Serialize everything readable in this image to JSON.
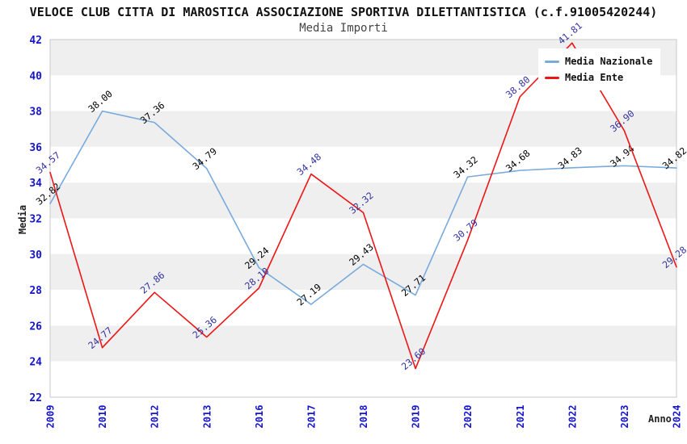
{
  "title": "VELOCE CLUB CITTA DI MAROSTICA ASSOCIAZIONE SPORTIVA DILETTANTISTICA (c.f.91005420244)",
  "subtitle": "Media Importi",
  "colors": {
    "axis_tick": "#1515cf",
    "band_fill": "#efefef",
    "plot_border": "#c9c9c9",
    "nazionale_line": "#78aadc",
    "ente_line": "#ee1515"
  },
  "chart_data": {
    "type": "line",
    "title": "Media Importi",
    "xlabel": "Anno",
    "ylabel": "Media",
    "ylim": [
      22,
      42
    ],
    "ytick_step": 2,
    "grid": "horizontal-bands",
    "legend_position": "top-right",
    "categories": [
      "2009",
      "2010",
      "2012",
      "2013",
      "2016",
      "2017",
      "2018",
      "2019",
      "2020",
      "2021",
      "2022",
      "2023",
      "2024"
    ],
    "series": [
      {
        "name": "Media Nazionale",
        "color": "#78aadc",
        "label_color": "#000000",
        "values": [
          32.82,
          38.0,
          37.36,
          34.79,
          29.24,
          27.19,
          29.43,
          27.71,
          34.32,
          34.68,
          34.83,
          34.94,
          34.82
        ]
      },
      {
        "name": "Media Ente",
        "color": "#ee1515",
        "label_color": "#32329f",
        "values": [
          34.57,
          24.77,
          27.86,
          25.36,
          28.1,
          34.48,
          32.32,
          23.6,
          30.79,
          38.8,
          41.81,
          36.9,
          29.28
        ]
      }
    ]
  }
}
